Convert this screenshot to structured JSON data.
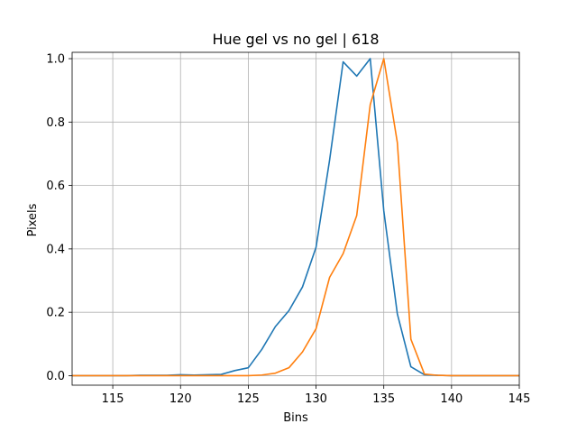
{
  "chart_data": {
    "type": "line",
    "title": "Hue gel vs no gel | 618",
    "xlabel": "Bins",
    "ylabel": "Pixels",
    "xlim": [
      112,
      145
    ],
    "ylim": [
      -0.03,
      1.02
    ],
    "grid": true,
    "xticks": [
      115,
      120,
      125,
      130,
      135,
      140,
      145
    ],
    "xtick_labels": [
      "115",
      "120",
      "125",
      "130",
      "135",
      "140",
      "145"
    ],
    "yticks": [
      0.0,
      0.2,
      0.4,
      0.6,
      0.8,
      1.0
    ],
    "ytick_labels": [
      "0.0",
      "0.2",
      "0.4",
      "0.6",
      "0.8",
      "1.0"
    ],
    "series": [
      {
        "color": "#1f77b4",
        "x": [
          112,
          113,
          114,
          115,
          116,
          117,
          118,
          119,
          120,
          121,
          122,
          123,
          124,
          125,
          126,
          127,
          128,
          129,
          130,
          131,
          132,
          133,
          134,
          135,
          136,
          137,
          138,
          139,
          140,
          141,
          142,
          143,
          144,
          145
        ],
        "y": [
          0.0,
          0.0,
          0.0,
          0.0,
          0.0,
          0.001,
          0.001,
          0.001,
          0.003,
          0.002,
          0.003,
          0.004,
          0.016,
          0.025,
          0.083,
          0.155,
          0.205,
          0.28,
          0.405,
          0.68,
          0.99,
          0.945,
          1.0,
          0.52,
          0.195,
          0.028,
          0.003,
          0.001,
          0.0,
          0.0,
          0.0,
          0.0,
          0.0,
          0.0
        ]
      },
      {
        "color": "#ff7f0e",
        "x": [
          112,
          113,
          114,
          115,
          116,
          117,
          118,
          119,
          120,
          121,
          122,
          123,
          124,
          125,
          126,
          127,
          128,
          129,
          130,
          131,
          132,
          133,
          134,
          135,
          136,
          137,
          138,
          139,
          140,
          141,
          142,
          143,
          144,
          145
        ],
        "y": [
          0.0,
          0.0,
          0.0,
          0.0,
          0.0,
          0.0,
          0.0,
          0.0,
          0.0,
          0.0,
          0.0,
          0.0,
          0.0,
          0.0,
          0.002,
          0.008,
          0.025,
          0.075,
          0.148,
          0.31,
          0.385,
          0.505,
          0.855,
          1.0,
          0.735,
          0.115,
          0.005,
          0.001,
          0.0,
          0.0,
          0.0,
          0.0,
          0.0,
          0.0
        ]
      }
    ]
  }
}
